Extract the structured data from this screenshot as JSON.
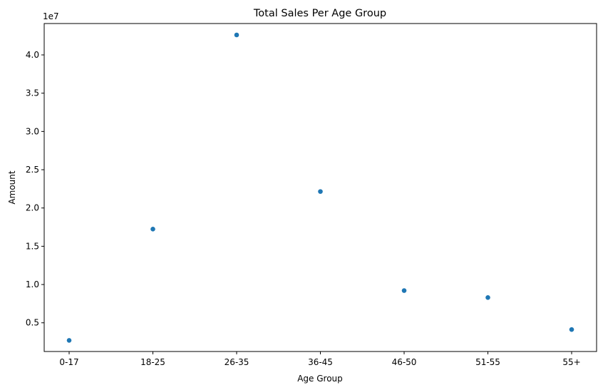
{
  "chart_data": {
    "type": "scatter",
    "title": "Total Sales Per Age Group",
    "xlabel": "Age Group",
    "ylabel": "Amount",
    "y_offset_label": "1e7",
    "categories": [
      "0-17",
      "18-25",
      "26-35",
      "36-45",
      "46-50",
      "51-55",
      "55+"
    ],
    "values": [
      2700000,
      17240000,
      42610000,
      22150000,
      9210000,
      8300000,
      4120000
    ],
    "ylim": [
      1250000,
      44100000
    ],
    "yticks": [
      0.5,
      1.0,
      1.5,
      2.0,
      2.5,
      3.0,
      3.5,
      4.0
    ],
    "ytick_labels": [
      "0.5",
      "1.0",
      "1.5",
      "2.0",
      "2.5",
      "3.0",
      "3.5",
      "4.0"
    ],
    "grid": false,
    "marker_color": "#1f77b4"
  }
}
